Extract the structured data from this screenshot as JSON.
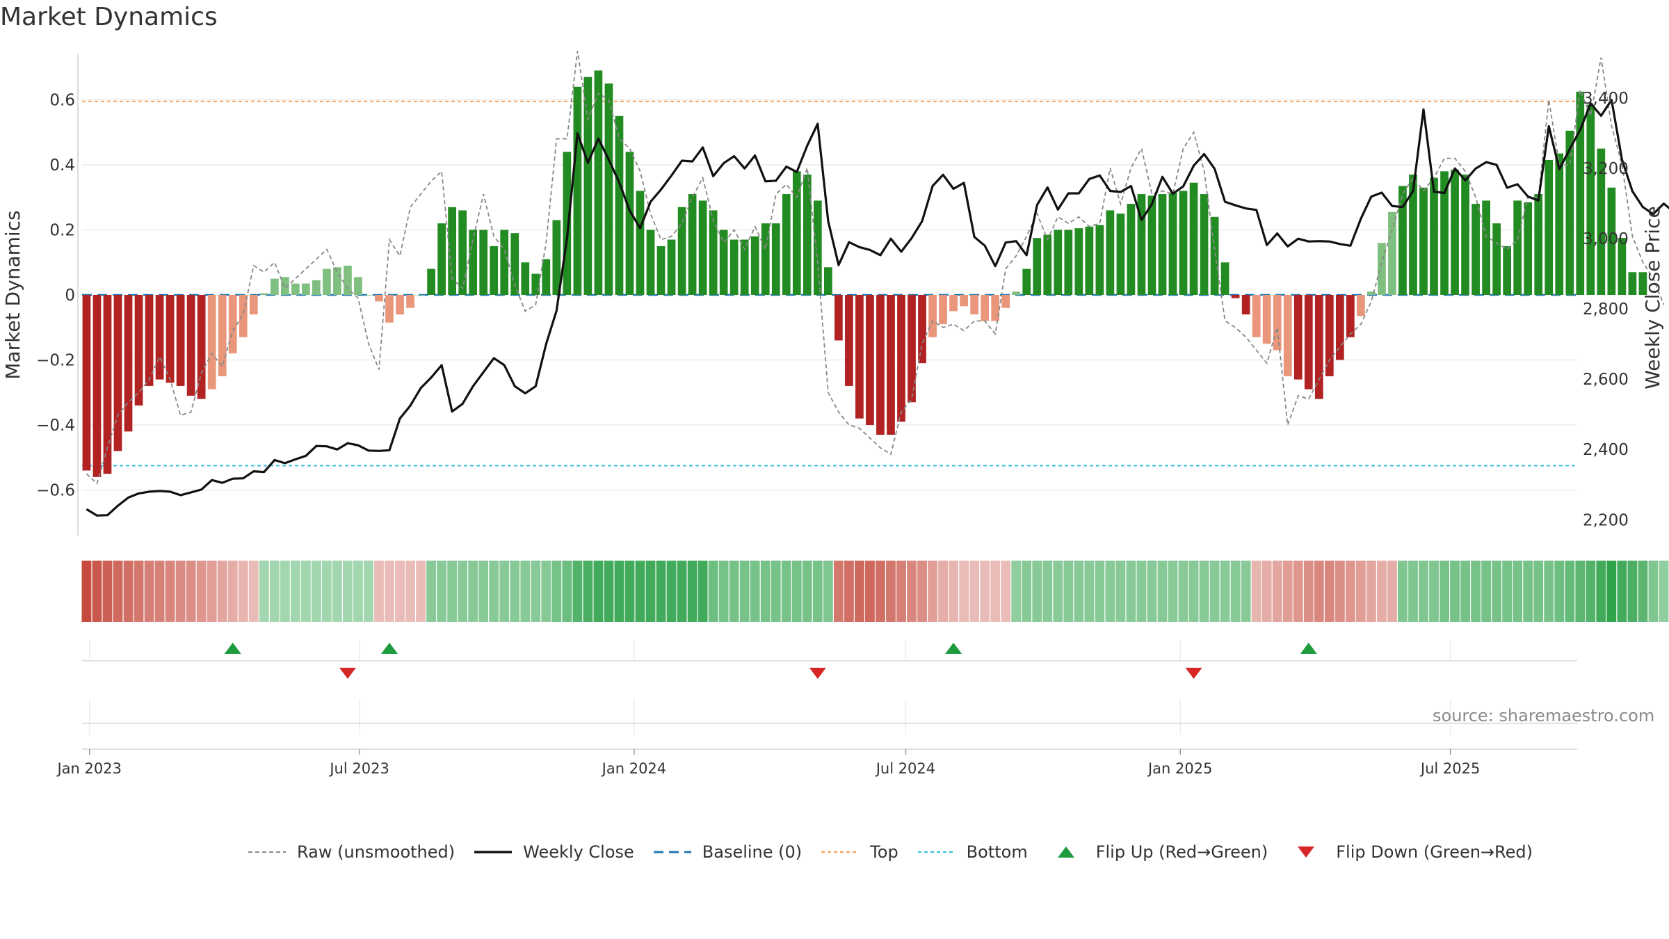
{
  "chart_data": {
    "type": "bar",
    "title": "Market Dynamics",
    "source": "source: sharemaestro.com",
    "y_left_label": "Market Dynamics",
    "y_right_label": "Weekly Close Price",
    "y_left_ticks": [
      "0.6",
      "0.4",
      "0.2",
      "0",
      "−0.2",
      "−0.4",
      "−0.6"
    ],
    "y_left_tick_values": [
      0.6,
      0.4,
      0.2,
      0,
      -0.2,
      -0.4,
      -0.6
    ],
    "y_left_range": [
      -0.74,
      0.74
    ],
    "y_right_ticks": [
      "3,400",
      "3,200",
      "3,000",
      "2,800",
      "2,600",
      "2,400",
      "2,200"
    ],
    "y_right_tick_values": [
      3400,
      3200,
      3000,
      2800,
      2600,
      2400,
      2200
    ],
    "y_right_range": [
      2155,
      3525
    ],
    "x_ticks": [
      "Jan 2023",
      "Jul 2023",
      "Jan 2024",
      "Jul 2024",
      "Jan 2025",
      "Jul 2025"
    ],
    "x_tick_dates": [
      "2023-01-01",
      "2023-07-01",
      "2024-01-01",
      "2024-07-01",
      "2025-01-01",
      "2025-07-01"
    ],
    "x_range": [
      "2022-12-27",
      "2025-09-24"
    ],
    "first_week": "2022-12-30",
    "top_level": 0.595,
    "bottom_level": -0.525,
    "dynamics": [
      -0.54,
      -0.56,
      -0.55,
      -0.48,
      -0.42,
      -0.34,
      -0.28,
      -0.26,
      -0.27,
      -0.28,
      -0.31,
      -0.32,
      -0.29,
      -0.25,
      -0.18,
      -0.13,
      -0.06,
      0.005,
      0.05,
      0.055,
      0.035,
      0.035,
      0.045,
      0.08,
      0.085,
      0.09,
      0.055,
      0.0,
      -0.02,
      -0.085,
      -0.06,
      -0.04,
      0.0,
      0.08,
      0.22,
      0.27,
      0.26,
      0.2,
      0.2,
      0.15,
      0.2,
      0.19,
      0.1,
      0.065,
      0.11,
      0.23,
      0.44,
      0.64,
      0.67,
      0.69,
      0.65,
      0.55,
      0.44,
      0.32,
      0.2,
      0.15,
      0.17,
      0.27,
      0.31,
      0.29,
      0.26,
      0.2,
      0.17,
      0.17,
      0.18,
      0.22,
      0.22,
      0.31,
      0.38,
      0.37,
      0.29,
      0.085,
      -0.14,
      -0.28,
      -0.38,
      -0.4,
      -0.43,
      -0.43,
      -0.39,
      -0.33,
      -0.21,
      -0.13,
      -0.09,
      -0.05,
      -0.035,
      -0.06,
      -0.08,
      -0.08,
      -0.04,
      0.01,
      0.08,
      0.175,
      0.185,
      0.2,
      0.2,
      0.205,
      0.21,
      0.215,
      0.26,
      0.25,
      0.28,
      0.31,
      0.305,
      0.31,
      0.315,
      0.32,
      0.345,
      0.31,
      0.24,
      0.1,
      -0.01,
      -0.06,
      -0.13,
      -0.15,
      -0.17,
      -0.25,
      -0.26,
      -0.29,
      -0.32,
      -0.25,
      -0.2,
      -0.13,
      -0.065,
      0.01,
      0.16,
      0.255,
      0.335,
      0.37,
      0.33,
      0.36,
      0.38,
      0.385,
      0.37,
      0.28,
      0.29,
      0.22,
      0.15,
      0.29,
      0.285,
      0.31,
      0.415,
      0.435,
      0.505,
      0.625,
      0.585,
      0.45,
      0.33,
      0.175,
      0.07,
      0.07
    ],
    "raw": [
      -0.55,
      -0.58,
      -0.47,
      -0.37,
      -0.33,
      -0.3,
      -0.26,
      -0.19,
      -0.26,
      -0.37,
      -0.36,
      -0.24,
      -0.18,
      -0.22,
      -0.11,
      -0.06,
      0.09,
      0.07,
      0.1,
      0.02,
      0.05,
      0.08,
      0.11,
      0.14,
      0.07,
      0.02,
      -0.01,
      -0.15,
      -0.23,
      0.17,
      0.12,
      0.27,
      0.31,
      0.35,
      0.38,
      0.05,
      0.02,
      0.17,
      0.31,
      0.18,
      0.14,
      0.03,
      -0.05,
      -0.03,
      0.16,
      0.48,
      0.48,
      0.75,
      0.54,
      0.62,
      0.6,
      0.48,
      0.45,
      0.38,
      0.25,
      0.17,
      0.18,
      0.22,
      0.3,
      0.36,
      0.23,
      0.16,
      0.2,
      0.14,
      0.21,
      0.14,
      0.31,
      0.34,
      0.3,
      0.39,
      0.1,
      -0.3,
      -0.36,
      -0.4,
      -0.41,
      -0.44,
      -0.47,
      -0.49,
      -0.36,
      -0.32,
      -0.15,
      -0.08,
      -0.1,
      -0.09,
      -0.11,
      -0.08,
      -0.08,
      -0.12,
      0.08,
      0.12,
      0.18,
      0.25,
      0.17,
      0.24,
      0.22,
      0.24,
      0.21,
      0.22,
      0.39,
      0.28,
      0.39,
      0.45,
      0.31,
      0.32,
      0.31,
      0.45,
      0.5,
      0.38,
      0.14,
      -0.08,
      -0.1,
      -0.13,
      -0.17,
      -0.21,
      -0.1,
      -0.4,
      -0.31,
      -0.32,
      -0.26,
      -0.2,
      -0.16,
      -0.12,
      -0.09,
      -0.02,
      0.1,
      0.2,
      0.31,
      0.36,
      0.32,
      0.36,
      0.42,
      0.42,
      0.38,
      0.3,
      0.18,
      0.16,
      0.14,
      0.17,
      0.3,
      0.3,
      0.6,
      0.4,
      0.4,
      0.63,
      0.55,
      0.73,
      0.52,
      0.4,
      0.18,
      0.1,
      0.05,
      -0.03
    ],
    "close": [
      2230,
      2212,
      2213,
      2240,
      2263,
      2275,
      2280,
      2282,
      2280,
      2270,
      2278,
      2286,
      2313,
      2305,
      2317,
      2318,
      2338,
      2336,
      2370,
      2361,
      2372,
      2382,
      2410,
      2409,
      2400,
      2418,
      2412,
      2397,
      2396,
      2398,
      2488,
      2525,
      2575,
      2605,
      2640,
      2508,
      2530,
      2580,
      2620,
      2660,
      2640,
      2580,
      2560,
      2580,
      2700,
      2795,
      3002,
      3300,
      3216,
      3285,
      3225,
      3160,
      3080,
      3030,
      3105,
      3140,
      3180,
      3222,
      3220,
      3260,
      3178,
      3215,
      3235,
      3200,
      3237,
      3163,
      3165,
      3205,
      3190,
      3265,
      3327,
      3050,
      2925,
      2990,
      2976,
      2968,
      2953,
      3000,
      2963,
      3002,
      3050,
      3150,
      3182,
      3142,
      3159,
      3005,
      2980,
      2922,
      2989,
      2993,
      2953,
      3096,
      3146,
      3083,
      3129,
      3129,
      3170,
      3180,
      3136,
      3133,
      3150,
      3053,
      3099,
      3176,
      3128,
      3149,
      3208,
      3241,
      3199,
      3105,
      3095,
      3086,
      3082,
      2982,
      3015,
      2978,
      3000,
      2992,
      2993,
      2992,
      2985,
      2980,
      3057,
      3120,
      3131,
      3093,
      3090,
      3136,
      3368,
      3134,
      3130,
      3200,
      3166,
      3200,
      3218,
      3210,
      3145,
      3155,
      3120,
      3109,
      3320,
      3198,
      3255,
      3310,
      3385,
      3350,
      3395,
      3225,
      3135,
      3090,
      3070,
      3100,
      3075
    ],
    "regime_strength": [
      -0.95,
      -0.85,
      -0.8,
      -0.75,
      -0.7,
      -0.65,
      -0.6,
      -0.58,
      -0.55,
      -0.52,
      -0.5,
      -0.45,
      -0.4,
      -0.35,
      -0.3,
      -0.25,
      -0.2,
      0.3,
      0.3,
      0.3,
      0.3,
      0.3,
      0.3,
      0.3,
      0.3,
      0.3,
      0.3,
      0.3,
      -0.2,
      -0.2,
      -0.2,
      -0.2,
      -0.2,
      0.45,
      0.45,
      0.45,
      0.45,
      0.45,
      0.45,
      0.45,
      0.45,
      0.45,
      0.45,
      0.45,
      0.45,
      0.55,
      0.6,
      0.75,
      0.8,
      0.85,
      0.85,
      0.85,
      0.85,
      0.85,
      0.85,
      0.85,
      0.85,
      0.85,
      0.85,
      0.85,
      0.6,
      0.55,
      0.55,
      0.55,
      0.55,
      0.55,
      0.55,
      0.55,
      0.55,
      0.55,
      0.55,
      0.5,
      -0.65,
      -0.7,
      -0.75,
      -0.75,
      -0.7,
      -0.65,
      -0.6,
      -0.55,
      -0.5,
      -0.4,
      -0.3,
      -0.25,
      -0.2,
      -0.2,
      -0.2,
      -0.2,
      -0.2,
      0.4,
      0.45,
      0.45,
      0.45,
      0.45,
      0.45,
      0.45,
      0.45,
      0.45,
      0.45,
      0.45,
      0.45,
      0.45,
      0.45,
      0.45,
      0.45,
      0.45,
      0.45,
      0.45,
      0.45,
      0.45,
      0.45,
      0.45,
      -0.25,
      -0.3,
      -0.35,
      -0.4,
      -0.45,
      -0.5,
      -0.55,
      -0.55,
      -0.5,
      -0.45,
      -0.4,
      -0.35,
      -0.3,
      -0.3,
      0.5,
      0.5,
      0.5,
      0.5,
      0.55,
      0.55,
      0.55,
      0.55,
      0.55,
      0.55,
      0.55,
      0.55,
      0.55,
      0.55,
      0.55,
      0.6,
      0.65,
      0.7,
      0.75,
      0.85,
      0.95,
      0.85,
      0.8,
      0.7,
      0.5,
      0.4
    ],
    "flips_up": [
      "2023-04-07",
      "2023-07-21",
      "2024-08-02",
      "2025-03-28"
    ],
    "flips_down": [
      "2023-06-23",
      "2024-05-03",
      "2025-01-10"
    ],
    "legend": [
      {
        "name": "Raw (unsmoothed)",
        "key": "raw"
      },
      {
        "name": "Weekly Close",
        "key": "close"
      },
      {
        "name": "Baseline (0)",
        "key": "baseline"
      },
      {
        "name": "Top",
        "key": "top"
      },
      {
        "name": "Bottom",
        "key": "bottom"
      },
      {
        "name": "Flip Up (Red→Green)",
        "key": "flip-up"
      },
      {
        "name": "Flip Down (Green→Red)",
        "key": "flip-down"
      }
    ],
    "legend_position": "bottom-center",
    "grid": true
  },
  "colors": {
    "green_strong": "#228b22",
    "green_light": "#7fbf7f",
    "red_strong": "#b22222",
    "red_light": "#e9967a",
    "close_line": "#111111",
    "raw_line": "#888888",
    "baseline": "#1f77b4",
    "top": "#f4a460",
    "bottom": "#3cbedc",
    "flip_up": "#1e9b3c",
    "flip_down": "#d62728",
    "grid": "#ececec"
  }
}
